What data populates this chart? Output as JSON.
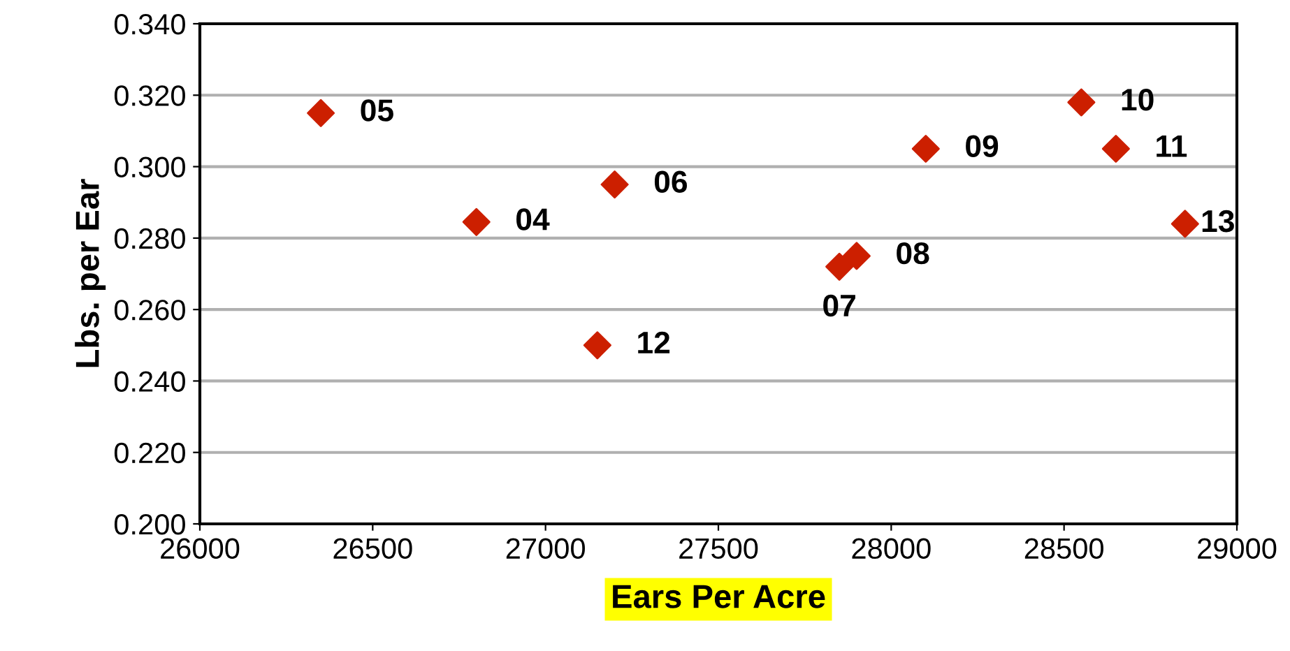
{
  "chart_data": {
    "type": "scatter",
    "xlabel": "Ears Per Acre",
    "ylabel": "Lbs. per Ear",
    "x": [
      26350,
      26800,
      27200,
      27150,
      27850,
      27900,
      28100,
      28550,
      28650,
      28850
    ],
    "series": [
      {
        "color": "#cc1f00",
        "values": [
          0.315,
          0.2845,
          0.295,
          0.25,
          0.272,
          0.275,
          0.305,
          0.318,
          0.305,
          0.284
        ]
      }
    ],
    "annotations": [
      {
        "text": "05",
        "x": 26350,
        "y": 0.315
      },
      {
        "text": "04",
        "x": 26800,
        "y": 0.2845
      },
      {
        "text": "06",
        "x": 27200,
        "y": 0.295
      },
      {
        "text": "12",
        "x": 27150,
        "y": 0.25
      },
      {
        "text": "07",
        "x": 27850,
        "y": 0.272
      },
      {
        "text": "08",
        "x": 27900,
        "y": 0.275
      },
      {
        "text": "09",
        "x": 28100,
        "y": 0.305
      },
      {
        "text": "10",
        "x": 28550,
        "y": 0.318
      },
      {
        "text": "11",
        "x": 28650,
        "y": 0.305
      },
      {
        "text": "13",
        "x": 28850,
        "y": 0.284
      }
    ],
    "xlim": [
      26000,
      29000
    ],
    "xticks": [
      26000,
      26500,
      27000,
      27500,
      28000,
      28500,
      29000
    ],
    "ylim": [
      0.2,
      0.34
    ],
    "yticks": [
      {
        "value": 0.2,
        "label": "0.200"
      },
      {
        "value": 0.22,
        "label": "0.220"
      },
      {
        "value": 0.24,
        "label": "0.240"
      },
      {
        "value": 0.26,
        "label": "0.260"
      },
      {
        "value": 0.28,
        "label": "0.280"
      },
      {
        "value": 0.3,
        "label": "0.300"
      },
      {
        "value": 0.32,
        "label": "0.320"
      },
      {
        "value": 0.34,
        "label": "0.340"
      }
    ],
    "grid": "y",
    "marker": "diamond"
  }
}
